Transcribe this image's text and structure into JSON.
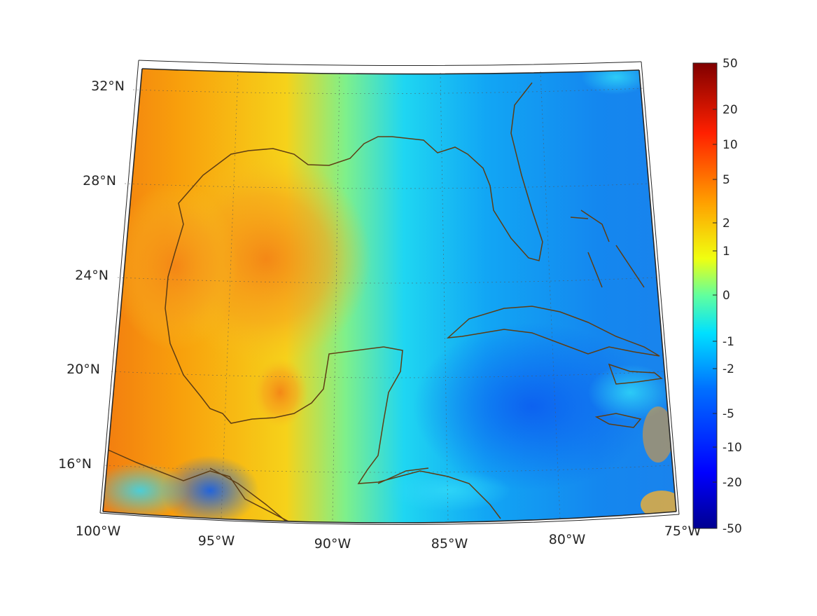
{
  "map": {
    "lon_labels": [
      "100°W",
      "95°W",
      "90°W",
      "85°W",
      "80°W",
      "75°W"
    ],
    "lat_labels": [
      "32°N",
      "28°N",
      "24°N",
      "20°N",
      "16°N"
    ],
    "lon_range": [
      -100,
      -75
    ],
    "lat_range": [
      14,
      33
    ],
    "coastline_color": "#5e3d14",
    "grid": "dotted"
  },
  "colorbar": {
    "ticks": [
      "50",
      "20",
      "10",
      "5",
      "2",
      "1",
      "0",
      "-1",
      "-2",
      "-5",
      "-10",
      "-20",
      "-50"
    ],
    "range": [
      -50,
      50
    ],
    "colormap": [
      "#000090",
      "#0000ff",
      "#0080ff",
      "#00ffff",
      "#80ff80",
      "#ffff00",
      "#ff8000",
      "#ff0000",
      "#800000"
    ]
  }
}
